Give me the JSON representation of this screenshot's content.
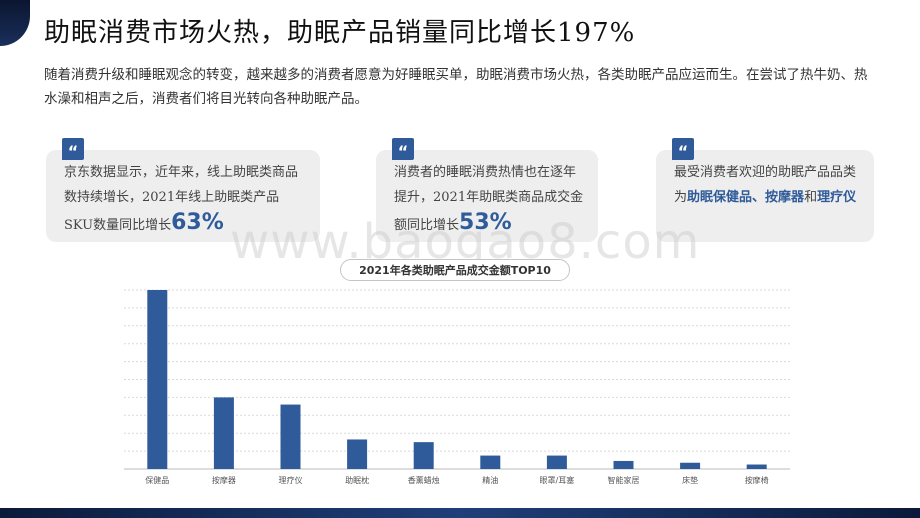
{
  "title": "助眠消费市场火热，助眠产品销量同比增长197%",
  "intro": "随着消费升级和睡眠观念的转变，越来越多的消费者愿意为好睡眠买单，助眠消费市场火热，各类助眠产品应运而生。在尝试了热牛奶、热水澡和相声之后，消费者们将目光转向各种助眠产品。",
  "watermark": "www.baogao8.com",
  "cards": [
    {
      "quote_icon": "quote-icon",
      "text": "京东数据显示，近年来，线上助眠类商品数持续增长，2021年线上助眠类产品SKU数量同比增长",
      "highlight": "63%"
    },
    {
      "quote_icon": "quote-icon",
      "text": "消费者的睡眠消费热情也在逐年提升，2021年助眠类商品成交金额同比增长",
      "highlight": "53%"
    },
    {
      "quote_icon": "quote-icon",
      "text_before": "最受消费者欢迎的助眠产品品类为",
      "item1": "助眠保健品",
      "sep": "、",
      "item2": "按摩器",
      "and": "和",
      "item3": "理疗仪"
    }
  ],
  "chart_data": {
    "type": "bar",
    "title": "2021年各类助眠产品成交金额TOP10",
    "categories": [
      "保健品",
      "按摩器",
      "理疗仪",
      "助眠枕",
      "香薰蜡烛",
      "精油",
      "眼罩/耳塞",
      "智能家居",
      "床垫",
      "按摩椅"
    ],
    "values": [
      100,
      40,
      36,
      16.5,
      15,
      7.5,
      7.5,
      4.5,
      3.5,
      2.5
    ],
    "ylim": [
      0,
      100
    ],
    "grid": true,
    "bar_color": "#2f5b9a",
    "xlabel": "",
    "ylabel": ""
  }
}
